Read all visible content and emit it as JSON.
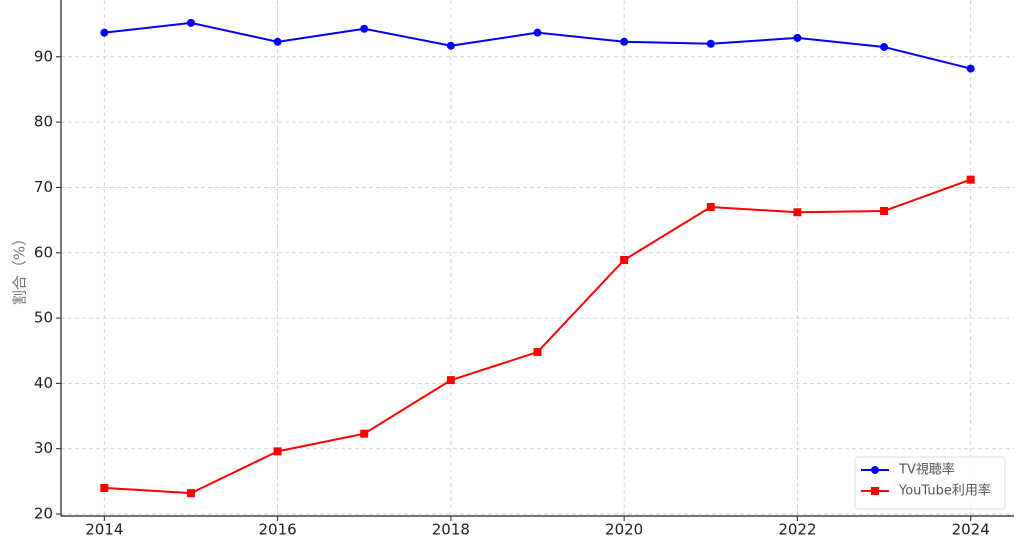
{
  "chart_data": {
    "type": "line",
    "y_label": "割合（%）",
    "x": [
      2014,
      2015,
      2016,
      2017,
      2018,
      2019,
      2020,
      2021,
      2022,
      2023,
      2024
    ],
    "series": [
      {
        "name": "TV視聴率",
        "color": "#0000ff",
        "marker": "circle",
        "values": [
          93.7,
          95.2,
          92.3,
          94.3,
          91.7,
          93.7,
          92.3,
          92.0,
          92.9,
          91.5,
          88.2
        ]
      },
      {
        "name": "YouTube利用率",
        "color": "#ff0000",
        "marker": "square",
        "values": [
          24.0,
          23.2,
          29.6,
          32.3,
          40.5,
          44.8,
          58.9,
          67.0,
          66.2,
          66.4,
          71.2
        ]
      }
    ],
    "xlim": [
      2013.5,
      2024.5
    ],
    "ylim": [
      19.7,
      98.7
    ],
    "xticks": [
      2014,
      2016,
      2018,
      2020,
      2022,
      2024
    ],
    "yticks": [
      20,
      30,
      40,
      50,
      60,
      70,
      80,
      90
    ],
    "grid": true,
    "legend": "lower right"
  }
}
